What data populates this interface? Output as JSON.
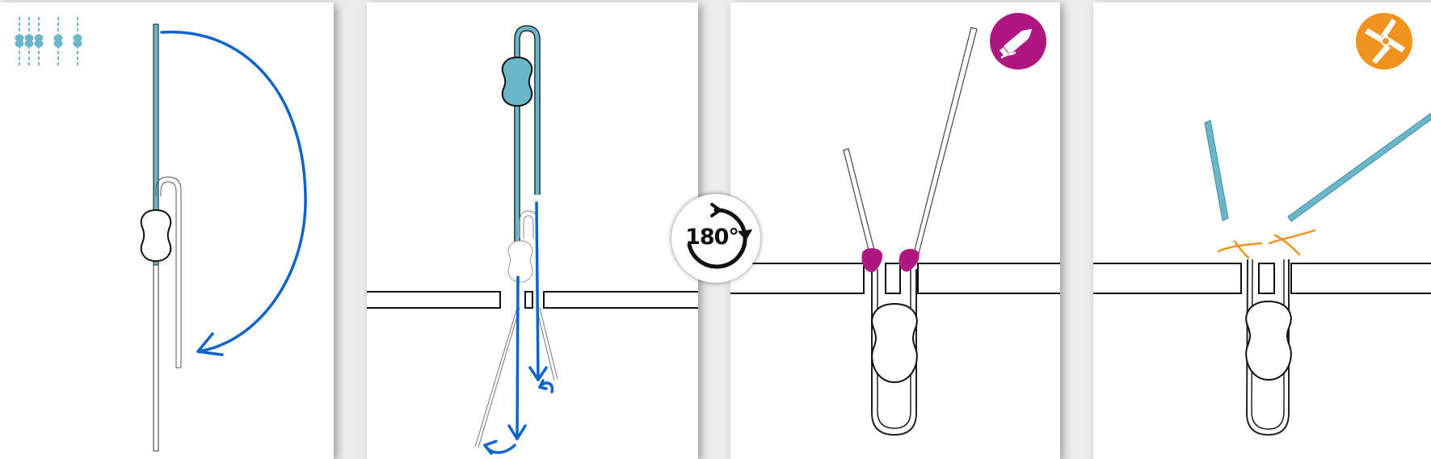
{
  "rotate_badge": {
    "label": "180°",
    "icon": "rotate-clockwise-icon"
  },
  "panel3_badge": {
    "icon": "marker-pen-icon",
    "color": "#b0167f"
  },
  "panel4_badge": {
    "icon": "scissors-icon",
    "color": "#f0921e"
  },
  "colors": {
    "strand": "#6bb7c9",
    "arrow": "#0e64c8",
    "glue": "#b0167f",
    "cut": "#f0921e",
    "outline": "#111111"
  }
}
